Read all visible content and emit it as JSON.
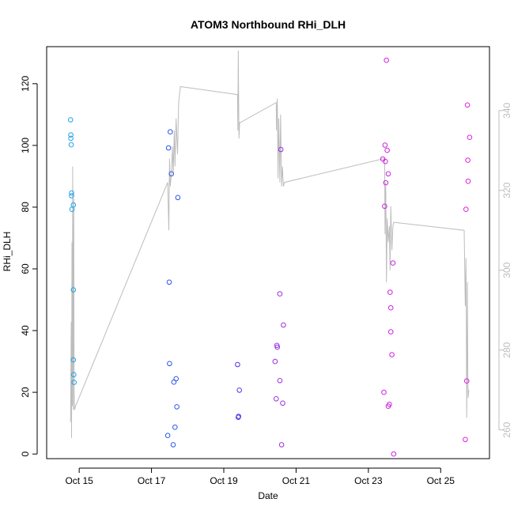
{
  "chart_data": {
    "type": "scatter",
    "title": "ATOM3 Northbound RHi_DLH",
    "xlabel": "Date",
    "ylabel": "RHi_DLH",
    "y2label": "",
    "x_ticks": [
      "Oct 15",
      "Oct 17",
      "Oct 19",
      "Oct 21",
      "Oct 23",
      "Oct 25"
    ],
    "x_tick_days": [
      15,
      17,
      19,
      21,
      23,
      25
    ],
    "xlim": [
      14.1,
      26.35
    ],
    "ylim": [
      -1.5,
      132
    ],
    "y_ticks": [
      0,
      20,
      40,
      60,
      80,
      100,
      120
    ],
    "y2lim": [
      252.8,
      356
    ],
    "y2_ticks": [
      260,
      280,
      300,
      320,
      340
    ],
    "grid": false,
    "colors": {
      "line": "#bdbdbd",
      "axis": "#000000",
      "right_axis": "#bdbdbd"
    },
    "series": [
      {
        "color": "#1fa4e8",
        "x": [
          14.76,
          14.77,
          14.77,
          14.78,
          14.79,
          14.79,
          14.8,
          14.84,
          14.84,
          14.84,
          14.85,
          14.86
        ],
        "y": [
          108.3,
          102.3,
          103.4,
          100.2,
          84.6,
          83.7,
          79.3,
          80.7,
          53.2,
          30.5,
          25.7,
          23.2
        ]
      },
      {
        "color": "#2a55e8",
        "x": [
          17.45,
          17.47,
          17.49,
          17.5,
          17.52,
          17.55,
          17.6,
          17.62,
          17.65,
          17.68,
          17.7,
          17.73
        ],
        "y": [
          6.0,
          99.2,
          55.7,
          29.3,
          104.4,
          90.8,
          3.0,
          23.3,
          8.7,
          24.4,
          15.3,
          83.1
        ]
      },
      {
        "color": "#5a2ee6",
        "x": [
          19.38,
          19.4,
          19.41,
          19.43
        ],
        "y": [
          29.0,
          11.9,
          12.2,
          20.7
        ]
      },
      {
        "color": "#9a30e0",
        "x": [
          20.42,
          20.45,
          20.47,
          20.48,
          20.55,
          20.55,
          20.58,
          20.6,
          20.63,
          20.65
        ],
        "y": [
          30.0,
          17.9,
          35.2,
          34.6,
          51.9,
          23.8,
          98.7,
          3.0,
          16.5,
          41.8
        ]
      },
      {
        "color": "#cc22e0",
        "x": [
          23.4,
          23.43,
          23.45,
          23.46,
          23.47,
          23.48,
          23.5,
          23.52,
          23.55,
          23.55,
          23.58,
          23.6,
          23.62,
          23.62,
          23.65,
          23.68,
          23.7
        ],
        "y": [
          95.6,
          20.0,
          80.3,
          100.1,
          94.8,
          87.9,
          127.6,
          98.4,
          15.5,
          90.8,
          16.1,
          52.4,
          47.4,
          39.6,
          32.2,
          61.9,
          0
        ]
      },
      {
        "color": "#dd22dd",
        "x": [
          25.68,
          25.7,
          25.72,
          25.74,
          25.75,
          25.76,
          25.8
        ],
        "y": [
          4.7,
          79.3,
          23.7,
          113.1,
          95.2,
          88.4,
          102.6
        ]
      }
    ],
    "secondary_line": {
      "color": "#bdbdbd",
      "x": [
        14.76,
        14.78,
        14.79,
        14.8,
        14.81,
        14.82,
        14.83,
        14.84,
        14.85,
        14.86,
        14.87,
        14.9,
        17.45,
        17.48,
        17.5,
        17.52,
        17.55,
        17.58,
        17.6,
        17.63,
        17.65,
        17.68,
        17.72,
        17.75,
        17.8,
        19.38,
        19.39,
        19.4,
        19.42,
        19.44,
        19.46,
        20.45,
        20.46,
        20.48,
        20.5,
        20.52,
        20.55,
        20.57,
        20.6,
        20.62,
        20.65,
        20.68,
        23.45,
        23.46,
        23.48,
        23.5,
        23.52,
        23.55,
        23.58,
        23.6,
        23.62,
        23.65,
        23.68,
        23.7,
        25.65,
        25.68,
        25.7,
        25.72,
        25.74,
        25.75,
        25.76,
        25.78
      ],
      "y": [
        262,
        287,
        258,
        307,
        266,
        326,
        294,
        265,
        318,
        270,
        265,
        266,
        322,
        310,
        328,
        321,
        324,
        331,
        324,
        335,
        326,
        338,
        329,
        342,
        346,
        344,
        335,
        355,
        333,
        337,
        337,
        342,
        335,
        343,
        323,
        338,
        322,
        339,
        321,
        326,
        321,
        322,
        328,
        309,
        322,
        297,
        313,
        307,
        311,
        300,
        316,
        305,
        311,
        312,
        310,
        291,
        303,
        263,
        297,
        273,
        268,
        270
      ]
    }
  }
}
